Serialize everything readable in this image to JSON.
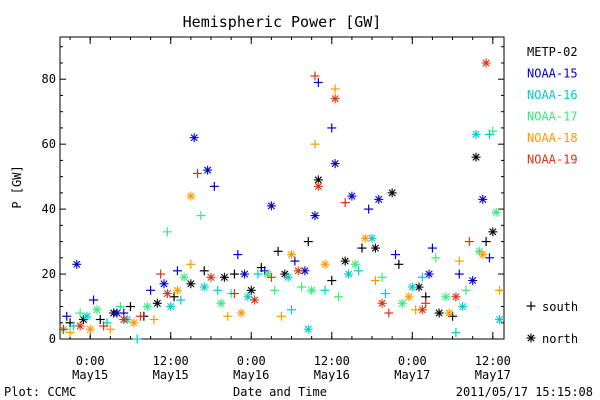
{
  "chart_data": {
    "type": "scatter",
    "title": "Hemispheric Power [GW]",
    "ylabel": "P [GW]",
    "xlabel": "Date and Time",
    "ylim": [
      0,
      93
    ],
    "xlim": [
      "2011-05-14T19:30",
      "2011-05-17T13:40"
    ],
    "yticks": [
      0,
      20,
      40,
      60,
      80
    ],
    "xticks": [
      {
        "time": "2011-05-15T00:00",
        "label1": "0:00",
        "label2": "May15"
      },
      {
        "time": "2011-05-15T12:00",
        "label1": "12:00",
        "label2": "May15"
      },
      {
        "time": "2011-05-16T00:00",
        "label1": "0:00",
        "label2": "May16"
      },
      {
        "time": "2011-05-16T12:00",
        "label1": "12:00",
        "label2": "May16"
      },
      {
        "time": "2011-05-17T00:00",
        "label1": "0:00",
        "label2": "May17"
      },
      {
        "time": "2011-05-17T12:00",
        "label1": "12:00",
        "label2": "May17"
      }
    ],
    "series": [
      {
        "name": "METP-02",
        "color": "#000000",
        "south": [
          [
            "2011-05-14T21:00",
            5
          ],
          [
            "2011-05-15T01:30",
            6
          ],
          [
            "2011-05-15T06:00",
            10
          ],
          [
            "2011-05-15T08:00",
            7
          ],
          [
            "2011-05-15T12:30",
            13
          ],
          [
            "2011-05-15T17:00",
            21
          ],
          [
            "2011-05-15T21:30",
            20
          ],
          [
            "2011-05-16T01:30",
            22
          ],
          [
            "2011-05-16T04:00",
            27
          ],
          [
            "2011-05-16T08:30",
            30
          ],
          [
            "2011-05-16T12:00",
            18
          ],
          [
            "2011-05-16T16:30",
            28
          ],
          [
            "2011-05-16T22:00",
            23
          ],
          [
            "2011-05-17T02:00",
            13
          ],
          [
            "2011-05-17T06:00",
            7
          ],
          [
            "2011-05-17T11:00",
            30
          ]
        ],
        "north": [
          [
            "2011-05-14T23:00",
            6
          ],
          [
            "2011-05-15T03:30",
            8
          ],
          [
            "2011-05-15T10:00",
            11
          ],
          [
            "2011-05-15T15:00",
            17
          ],
          [
            "2011-05-15T20:00",
            19
          ],
          [
            "2011-05-16T00:00",
            15
          ],
          [
            "2011-05-16T05:00",
            20
          ],
          [
            "2011-05-16T10:00",
            49
          ],
          [
            "2011-05-16T14:00",
            24
          ],
          [
            "2011-05-16T18:30",
            28
          ],
          [
            "2011-05-16T21:00",
            45
          ],
          [
            "2011-05-17T01:00",
            16
          ],
          [
            "2011-05-17T04:00",
            8
          ],
          [
            "2011-05-17T09:30",
            56
          ],
          [
            "2011-05-17T12:00",
            33
          ]
        ]
      },
      {
        "name": "NOAA-15",
        "color": "#0000cc",
        "south": [
          [
            "2011-05-14T20:30",
            7
          ],
          [
            "2011-05-15T00:30",
            12
          ],
          [
            "2011-05-15T05:00",
            8
          ],
          [
            "2011-05-15T09:00",
            15
          ],
          [
            "2011-05-15T13:00",
            21
          ],
          [
            "2011-05-15T18:30",
            47
          ],
          [
            "2011-05-15T22:00",
            26
          ],
          [
            "2011-05-16T02:00",
            21
          ],
          [
            "2011-05-16T06:30",
            24
          ],
          [
            "2011-05-16T10:00",
            79
          ],
          [
            "2011-05-16T12:00",
            65
          ],
          [
            "2011-05-16T17:30",
            40
          ],
          [
            "2011-05-16T21:30",
            26
          ],
          [
            "2011-05-17T03:00",
            28
          ],
          [
            "2011-05-17T07:00",
            20
          ],
          [
            "2011-05-17T11:30",
            25
          ]
        ],
        "north": [
          [
            "2011-05-14T22:00",
            23
          ],
          [
            "2011-05-15T04:00",
            8
          ],
          [
            "2011-05-15T11:00",
            17
          ],
          [
            "2011-05-15T15:30",
            62
          ],
          [
            "2011-05-15T17:30",
            52
          ],
          [
            "2011-05-15T23:00",
            20
          ],
          [
            "2011-05-16T03:00",
            41
          ],
          [
            "2011-05-16T08:00",
            21
          ],
          [
            "2011-05-16T09:30",
            38
          ],
          [
            "2011-05-16T12:30",
            54
          ],
          [
            "2011-05-16T15:00",
            44
          ],
          [
            "2011-05-16T19:00",
            43
          ],
          [
            "2011-05-17T02:30",
            20
          ],
          [
            "2011-05-17T09:00",
            18
          ],
          [
            "2011-05-17T10:30",
            43
          ]
        ]
      },
      {
        "name": "NOAA-16",
        "color": "#00cccc",
        "south": [
          [
            "2011-05-14T21:30",
            4
          ],
          [
            "2011-05-15T02:30",
            5
          ],
          [
            "2011-05-15T07:00",
            0
          ],
          [
            "2011-05-15T13:30",
            12
          ],
          [
            "2011-05-15T19:00",
            15
          ],
          [
            "2011-05-16T01:00",
            20
          ],
          [
            "2011-05-16T06:00",
            9
          ],
          [
            "2011-05-16T11:00",
            15
          ],
          [
            "2011-05-16T16:00",
            21
          ],
          [
            "2011-05-16T20:00",
            14
          ],
          [
            "2011-05-17T01:30",
            19
          ],
          [
            "2011-05-17T06:30",
            2
          ],
          [
            "2011-05-17T11:30",
            63
          ]
        ],
        "north": [
          [
            "2011-05-14T23:30",
            7
          ],
          [
            "2011-05-15T05:30",
            6
          ],
          [
            "2011-05-15T12:00",
            10
          ],
          [
            "2011-05-15T17:00",
            16
          ],
          [
            "2011-05-15T23:30",
            13
          ],
          [
            "2011-05-16T05:30",
            19
          ],
          [
            "2011-05-16T08:30",
            3
          ],
          [
            "2011-05-16T14:30",
            20
          ],
          [
            "2011-05-16T18:00",
            31
          ],
          [
            "2011-05-17T00:00",
            16
          ],
          [
            "2011-05-17T07:30",
            10
          ],
          [
            "2011-05-17T09:30",
            63
          ],
          [
            "2011-05-17T13:00",
            6
          ]
        ]
      },
      {
        "name": "NOAA-17",
        "color": "#33ee77",
        "south": [
          [
            "2011-05-14T22:30",
            8
          ],
          [
            "2011-05-15T04:30",
            10
          ],
          [
            "2011-05-15T11:30",
            33
          ],
          [
            "2011-05-15T16:30",
            38
          ],
          [
            "2011-05-15T21:00",
            14
          ],
          [
            "2011-05-16T03:30",
            15
          ],
          [
            "2011-05-16T07:30",
            16
          ],
          [
            "2011-05-16T13:00",
            13
          ],
          [
            "2011-05-16T19:30",
            19
          ],
          [
            "2011-05-17T03:30",
            25
          ],
          [
            "2011-05-17T08:00",
            15
          ],
          [
            "2011-05-17T12:00",
            64
          ]
        ],
        "north": [
          [
            "2011-05-14T20:00",
            3
          ],
          [
            "2011-05-15T01:00",
            9
          ],
          [
            "2011-05-15T08:30",
            10
          ],
          [
            "2011-05-15T14:00",
            19
          ],
          [
            "2011-05-15T19:30",
            11
          ],
          [
            "2011-05-16T02:30",
            20
          ],
          [
            "2011-05-16T09:00",
            15
          ],
          [
            "2011-05-16T15:30",
            23
          ],
          [
            "2011-05-16T22:30",
            11
          ],
          [
            "2011-05-17T05:00",
            13
          ],
          [
            "2011-05-17T10:00",
            27
          ],
          [
            "2011-05-17T12:30",
            39
          ]
        ]
      },
      {
        "name": "NOAA-18",
        "color": "#ff9900",
        "south": [
          [
            "2011-05-14T21:00",
            2
          ],
          [
            "2011-05-15T03:00",
            3
          ],
          [
            "2011-05-15T09:30",
            6
          ],
          [
            "2011-05-15T15:00",
            23
          ],
          [
            "2011-05-15T20:30",
            7
          ],
          [
            "2011-05-16T04:30",
            7
          ],
          [
            "2011-05-16T09:30",
            60
          ],
          [
            "2011-05-16T12:30",
            77
          ],
          [
            "2011-05-16T18:30",
            18
          ],
          [
            "2011-05-17T00:30",
            9
          ],
          [
            "2011-05-17T07:00",
            24
          ],
          [
            "2011-05-17T13:00",
            15
          ]
        ],
        "north": [
          [
            "2011-05-15T00:00",
            3
          ],
          [
            "2011-05-15T06:30",
            5
          ],
          [
            "2011-05-15T13:00",
            15
          ],
          [
            "2011-05-15T15:00",
            44
          ],
          [
            "2011-05-15T22:30",
            8
          ],
          [
            "2011-05-16T06:00",
            26
          ],
          [
            "2011-05-16T11:00",
            23
          ],
          [
            "2011-05-16T17:00",
            31
          ],
          [
            "2011-05-16T23:30",
            13
          ],
          [
            "2011-05-17T05:30",
            8
          ],
          [
            "2011-05-17T10:30",
            26
          ]
        ]
      },
      {
        "name": "NOAA-19",
        "color": "#dd3311",
        "south": [
          [
            "2011-05-14T20:00",
            3
          ],
          [
            "2011-05-15T02:00",
            4
          ],
          [
            "2011-05-15T07:30",
            7
          ],
          [
            "2011-05-15T10:30",
            20
          ],
          [
            "2011-05-15T16:00",
            51
          ],
          [
            "2011-05-15T21:30",
            14
          ],
          [
            "2011-05-16T03:00",
            19
          ],
          [
            "2011-05-16T09:30",
            81
          ],
          [
            "2011-05-16T14:00",
            42
          ],
          [
            "2011-05-16T20:30",
            8
          ],
          [
            "2011-05-17T02:00",
            11
          ],
          [
            "2011-05-17T08:30",
            30
          ]
        ],
        "north": [
          [
            "2011-05-14T22:30",
            4
          ],
          [
            "2011-05-15T05:00",
            6
          ],
          [
            "2011-05-15T11:30",
            14
          ],
          [
            "2011-05-15T18:00",
            19
          ],
          [
            "2011-05-16T00:30",
            12
          ],
          [
            "2011-05-16T07:00",
            21
          ],
          [
            "2011-05-16T10:00",
            47
          ],
          [
            "2011-05-16T12:30",
            74
          ],
          [
            "2011-05-16T19:30",
            11
          ],
          [
            "2011-05-17T01:30",
            9
          ],
          [
            "2011-05-17T06:30",
            13
          ],
          [
            "2011-05-17T11:00",
            85
          ]
        ]
      }
    ],
    "marker_legend": {
      "south": "south",
      "north": "north"
    }
  },
  "footer": {
    "left": "Plot: CCMC",
    "center": "Date and Time",
    "right": "2011/05/17 15:15:08"
  }
}
